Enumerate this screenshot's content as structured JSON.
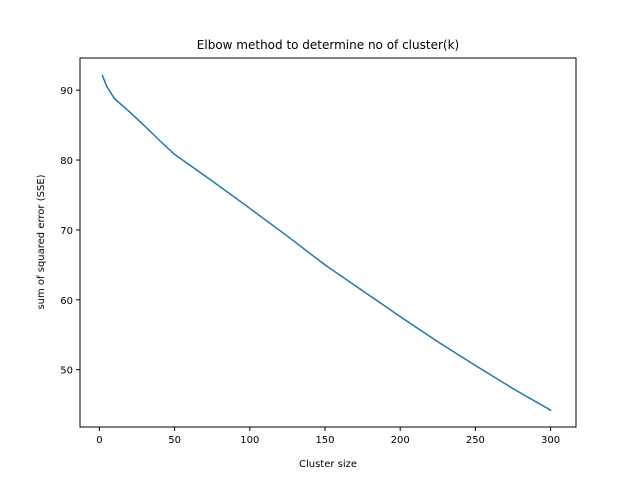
{
  "chart_data": {
    "type": "line",
    "title": "Elbow method to determine no of cluster(k)",
    "xlabel": "Cluster size",
    "ylabel": "sum of squared error (SSE)",
    "xlim": [
      -12.9,
      316.9
    ],
    "ylim": [
      41.8,
      94.6
    ],
    "xticks": [
      0,
      50,
      100,
      150,
      200,
      250,
      300
    ],
    "yticks": [
      50,
      60,
      70,
      80,
      90
    ],
    "grid": false,
    "line_color": "#1f77b4",
    "series": [
      {
        "x": [
          2,
          5,
          10,
          20,
          30,
          40,
          50,
          75,
          100,
          125,
          150,
          175,
          200,
          225,
          250,
          275,
          300
        ],
        "values": [
          92.1,
          90.5,
          88.8,
          86.9,
          84.9,
          82.8,
          80.8,
          77.0,
          73.1,
          69.1,
          65.0,
          61.3,
          57.6,
          54.0,
          50.6,
          47.3,
          44.2
        ]
      }
    ]
  }
}
